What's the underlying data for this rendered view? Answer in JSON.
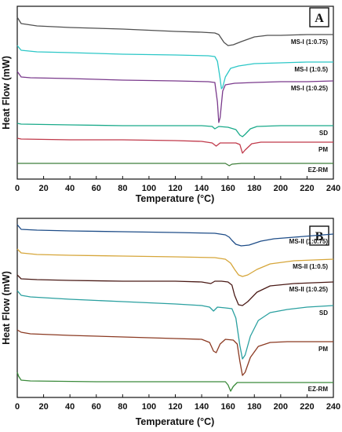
{
  "chart_data": [
    {
      "type": "line",
      "panel_label": "A",
      "xlabel": "Temperature  (°C)",
      "ylabel": "Heat Flow (mW)",
      "xlim": [
        0,
        240
      ],
      "xticks": [
        0,
        20,
        40,
        60,
        80,
        100,
        120,
        140,
        160,
        180,
        200,
        220,
        240
      ],
      "grid": false,
      "series": [
        {
          "name": "MS-I (1:0.75)",
          "color": "#505050",
          "baseline": 155,
          "points": [
            [
              0,
              22
            ],
            [
              3,
              30
            ],
            [
              15,
              33
            ],
            [
              40,
              35
            ],
            [
              80,
              37
            ],
            [
              120,
              40
            ],
            [
              140,
              41
            ],
            [
              150,
              42
            ],
            [
              153,
              44
            ],
            [
              157,
              54
            ],
            [
              160,
              58
            ],
            [
              164,
              57
            ],
            [
              170,
              53
            ],
            [
              180,
              47
            ],
            [
              190,
              45
            ],
            [
              200,
              45
            ],
            [
              220,
              44
            ],
            [
              240,
              44
            ]
          ]
        },
        {
          "name": "MS-I (1:0.5)",
          "color": "#2cc7c7",
          "baseline": 155,
          "points": [
            [
              0,
              58
            ],
            [
              3,
              64
            ],
            [
              15,
              66
            ],
            [
              40,
              67
            ],
            [
              80,
              69
            ],
            [
              120,
              70
            ],
            [
              145,
              71
            ],
            [
              150,
              72
            ],
            [
              152,
              78
            ],
            [
              154,
              100
            ],
            [
              155,
              113
            ],
            [
              156,
              111
            ],
            [
              158,
              98
            ],
            [
              162,
              87
            ],
            [
              168,
              84
            ],
            [
              180,
              81
            ],
            [
              200,
              80
            ],
            [
              220,
              79
            ],
            [
              240,
              79
            ]
          ]
        },
        {
          "name": "MS-I (1:0.25)",
          "color": "#7a3a8c",
          "baseline": 155,
          "points": [
            [
              0,
              91
            ],
            [
              3,
              98
            ],
            [
              10,
              99
            ],
            [
              40,
              100
            ],
            [
              80,
              102
            ],
            [
              120,
              103
            ],
            [
              145,
              104
            ],
            [
              150,
              105
            ],
            [
              152,
              130
            ],
            [
              153,
              156
            ],
            [
              154,
              150
            ],
            [
              156,
              116
            ],
            [
              158,
              108
            ],
            [
              165,
              106
            ],
            [
              180,
              105
            ],
            [
              200,
              104
            ],
            [
              220,
              104
            ],
            [
              240,
              103
            ]
          ]
        },
        {
          "name": "SD",
          "color": "#1aaa8a",
          "baseline": 155,
          "points": [
            [
              0,
              157
            ],
            [
              3,
              158
            ],
            [
              40,
              159
            ],
            [
              80,
              160
            ],
            [
              120,
              160
            ],
            [
              140,
              160
            ],
            [
              148,
              161
            ],
            [
              150,
              164
            ],
            [
              153,
              161
            ],
            [
              160,
              162
            ],
            [
              166,
              165
            ],
            [
              169,
              172
            ],
            [
              171,
              174
            ],
            [
              173,
              171
            ],
            [
              177,
              164
            ],
            [
              182,
              161
            ],
            [
              200,
              160
            ],
            [
              220,
              160
            ],
            [
              240,
              160
            ]
          ]
        },
        {
          "name": "PM",
          "color": "#c0394a",
          "baseline": 155,
          "points": [
            [
              0,
              176
            ],
            [
              3,
              177
            ],
            [
              40,
              178
            ],
            [
              80,
              178
            ],
            [
              120,
              179
            ],
            [
              140,
              180
            ],
            [
              148,
              182
            ],
            [
              151,
              186
            ],
            [
              154,
              182
            ],
            [
              160,
              182
            ],
            [
              166,
              182
            ],
            [
              169,
              184
            ],
            [
              171,
              195
            ],
            [
              173,
              191
            ],
            [
              178,
              183
            ],
            [
              185,
              181
            ],
            [
              200,
              181
            ],
            [
              220,
              181
            ],
            [
              240,
              181
            ]
          ]
        },
        {
          "name": "EZ-RM",
          "color": "#3f7f3a",
          "baseline": 155,
          "points": [
            [
              0,
              208
            ],
            [
              60,
              208
            ],
            [
              120,
              208
            ],
            [
              158,
              208
            ],
            [
              161,
              211
            ],
            [
              163,
              209
            ],
            [
              170,
              208
            ],
            [
              200,
              208
            ],
            [
              240,
              208
            ]
          ]
        }
      ]
    },
    {
      "type": "line",
      "panel_label": "B",
      "xlabel": "Temperature  (°C)",
      "ylabel": "Heat Flow (mW)",
      "xlim": [
        0,
        240
      ],
      "xticks": [
        0,
        20,
        40,
        60,
        80,
        100,
        120,
        140,
        160,
        180,
        200,
        220,
        240
      ],
      "grid": false,
      "series": [
        {
          "name": "MS-II (1:0.75)",
          "color": "#1e4d88",
          "baseline": 155,
          "points": [
            [
              0,
              286
            ],
            [
              3,
              292
            ],
            [
              15,
              293
            ],
            [
              40,
              294
            ],
            [
              80,
              295
            ],
            [
              120,
              296
            ],
            [
              150,
              297
            ],
            [
              158,
              299
            ],
            [
              161,
              302
            ],
            [
              163,
              306
            ],
            [
              166,
              311
            ],
            [
              170,
              313
            ],
            [
              176,
              312
            ],
            [
              185,
              307
            ],
            [
              195,
              304
            ],
            [
              210,
              302
            ],
            [
              225,
              300
            ],
            [
              240,
              298
            ]
          ]
        },
        {
          "name": "MS-II (1:0.5)",
          "color": "#d6a63a",
          "baseline": 155,
          "points": [
            [
              0,
              317
            ],
            [
              3,
              322
            ],
            [
              15,
              324
            ],
            [
              40,
              325
            ],
            [
              80,
              326
            ],
            [
              120,
              327
            ],
            [
              150,
              328
            ],
            [
              158,
              330
            ],
            [
              162,
              335
            ],
            [
              165,
              343
            ],
            [
              168,
              350
            ],
            [
              171,
              352
            ],
            [
              175,
              350
            ],
            [
              182,
              343
            ],
            [
              192,
              336
            ],
            [
              210,
              332
            ],
            [
              225,
              331
            ],
            [
              240,
              330
            ]
          ]
        },
        {
          "name": "MS-II (1:0.25)",
          "color": "#4a1a16",
          "baseline": 155,
          "points": [
            [
              0,
              350
            ],
            [
              3,
              355
            ],
            [
              15,
              356
            ],
            [
              40,
              357
            ],
            [
              80,
              358
            ],
            [
              120,
              358
            ],
            [
              140,
              359
            ],
            [
              147,
              361
            ],
            [
              150,
              358
            ],
            [
              155,
              358
            ],
            [
              160,
              359
            ],
            [
              163,
              363
            ],
            [
              165,
              376
            ],
            [
              168,
              388
            ],
            [
              171,
              389
            ],
            [
              175,
              384
            ],
            [
              182,
              372
            ],
            [
              192,
              364
            ],
            [
              210,
              361
            ],
            [
              225,
              360
            ],
            [
              240,
              359
            ]
          ]
        },
        {
          "name": "SD",
          "color": "#2aa0a0",
          "baseline": 155,
          "points": [
            [
              0,
              370
            ],
            [
              3,
              376
            ],
            [
              10,
              378
            ],
            [
              40,
              381
            ],
            [
              80,
              384
            ],
            [
              120,
              387
            ],
            [
              140,
              389
            ],
            [
              146,
              391
            ],
            [
              149,
              396
            ],
            [
              152,
              391
            ],
            [
              158,
              392
            ],
            [
              163,
              393
            ],
            [
              166,
              405
            ],
            [
              169,
              440
            ],
            [
              171,
              457
            ],
            [
              173,
              452
            ],
            [
              177,
              428
            ],
            [
              183,
              408
            ],
            [
              192,
              398
            ],
            [
              205,
              394
            ],
            [
              220,
              391
            ],
            [
              240,
              389
            ]
          ]
        },
        {
          "name": "PM",
          "color": "#8b3a22",
          "baseline": 155,
          "points": [
            [
              0,
              420
            ],
            [
              3,
              423
            ],
            [
              10,
              425
            ],
            [
              40,
              427
            ],
            [
              80,
              429
            ],
            [
              120,
              431
            ],
            [
              140,
              432
            ],
            [
              146,
              436
            ],
            [
              149,
              447
            ],
            [
              151,
              449
            ],
            [
              154,
              438
            ],
            [
              158,
              432
            ],
            [
              164,
              433
            ],
            [
              167,
              438
            ],
            [
              169,
              460
            ],
            [
              171,
              478
            ],
            [
              173,
              474
            ],
            [
              177,
              455
            ],
            [
              183,
              441
            ],
            [
              192,
              436
            ],
            [
              205,
              435
            ],
            [
              220,
              435
            ],
            [
              240,
              435
            ]
          ]
        },
        {
          "name": "EZ-RM",
          "color": "#3a8a3a",
          "baseline": 155,
          "points": [
            [
              0,
              474
            ],
            [
              1,
              479
            ],
            [
              3,
              484
            ],
            [
              10,
              485
            ],
            [
              60,
              486
            ],
            [
              120,
              486
            ],
            [
              158,
              486
            ],
            [
              160,
              490
            ],
            [
              162,
              498
            ],
            [
              164,
              492
            ],
            [
              167,
              487
            ],
            [
              180,
              487
            ],
            [
              200,
              487
            ],
            [
              240,
              487
            ]
          ]
        }
      ]
    }
  ]
}
